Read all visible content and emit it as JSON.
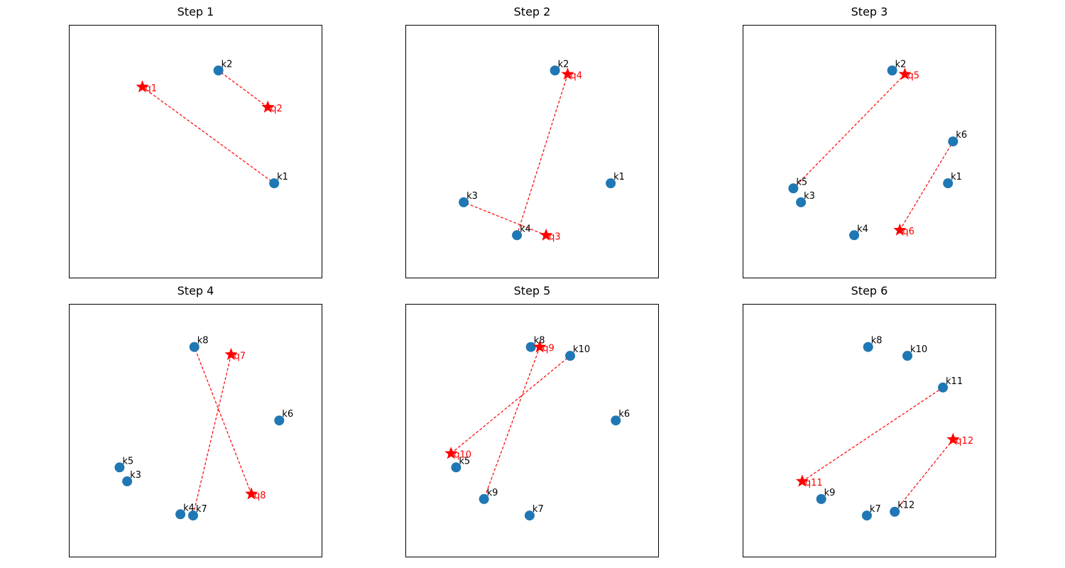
{
  "chart_data": [
    {
      "type": "scatter",
      "title": "Step 1",
      "xlim": [
        0,
        1
      ],
      "ylim": [
        0,
        1
      ],
      "xticks": false,
      "yticks": false,
      "keys": [
        {
          "label": "k1",
          "x": 0.81,
          "y": 0.375
        },
        {
          "label": "k2",
          "x": 0.59,
          "y": 0.82
        }
      ],
      "queries": [
        {
          "label": "q1",
          "x": 0.29,
          "y": 0.755
        },
        {
          "label": "q2",
          "x": 0.785,
          "y": 0.675
        }
      ],
      "links": [
        {
          "query": "q1",
          "key": "k1"
        },
        {
          "query": "q2",
          "key": "k2"
        }
      ]
    },
    {
      "type": "scatter",
      "title": "Step 2",
      "xlim": [
        0,
        1
      ],
      "ylim": [
        0,
        1
      ],
      "xticks": false,
      "yticks": false,
      "keys": [
        {
          "label": "k1",
          "x": 0.81,
          "y": 0.375
        },
        {
          "label": "k2",
          "x": 0.59,
          "y": 0.82
        },
        {
          "label": "k3",
          "x": 0.23,
          "y": 0.3
        },
        {
          "label": "k4",
          "x": 0.44,
          "y": 0.17
        }
      ],
      "queries": [
        {
          "label": "q3",
          "x": 0.555,
          "y": 0.17
        },
        {
          "label": "q4",
          "x": 0.64,
          "y": 0.805
        }
      ],
      "links": [
        {
          "query": "q3",
          "key": "k3"
        },
        {
          "query": "q4",
          "key": "k4"
        }
      ]
    },
    {
      "type": "scatter",
      "title": "Step 3",
      "xlim": [
        0,
        1
      ],
      "ylim": [
        0,
        1
      ],
      "xticks": false,
      "yticks": false,
      "keys": [
        {
          "label": "k1",
          "x": 0.81,
          "y": 0.375
        },
        {
          "label": "k2",
          "x": 0.59,
          "y": 0.82
        },
        {
          "label": "k3",
          "x": 0.23,
          "y": 0.3
        },
        {
          "label": "k4",
          "x": 0.44,
          "y": 0.17
        },
        {
          "label": "k5",
          "x": 0.2,
          "y": 0.355
        },
        {
          "label": "k6",
          "x": 0.83,
          "y": 0.54
        }
      ],
      "queries": [
        {
          "label": "q5",
          "x": 0.64,
          "y": 0.805
        },
        {
          "label": "q6",
          "x": 0.62,
          "y": 0.19
        }
      ],
      "links": [
        {
          "query": "q5",
          "key": "k5"
        },
        {
          "query": "q6",
          "key": "k6"
        }
      ]
    },
    {
      "type": "scatter",
      "title": "Step 4",
      "xlim": [
        0,
        1
      ],
      "ylim": [
        0,
        1
      ],
      "xticks": false,
      "yticks": false,
      "keys": [
        {
          "label": "k3",
          "x": 0.23,
          "y": 0.3
        },
        {
          "label": "k4",
          "x": 0.44,
          "y": 0.17
        },
        {
          "label": "k5",
          "x": 0.2,
          "y": 0.355
        },
        {
          "label": "k6",
          "x": 0.83,
          "y": 0.54
        },
        {
          "label": "k7",
          "x": 0.49,
          "y": 0.165
        },
        {
          "label": "k8",
          "x": 0.495,
          "y": 0.83
        }
      ],
      "queries": [
        {
          "label": "q7",
          "x": 0.64,
          "y": 0.8
        },
        {
          "label": "q8",
          "x": 0.72,
          "y": 0.25
        }
      ],
      "links": [
        {
          "query": "q7",
          "key": "k7"
        },
        {
          "query": "q8",
          "key": "k8"
        }
      ]
    },
    {
      "type": "scatter",
      "title": "Step 5",
      "xlim": [
        0,
        1
      ],
      "ylim": [
        0,
        1
      ],
      "xticks": false,
      "yticks": false,
      "keys": [
        {
          "label": "k5",
          "x": 0.2,
          "y": 0.355
        },
        {
          "label": "k6",
          "x": 0.83,
          "y": 0.54
        },
        {
          "label": "k7",
          "x": 0.49,
          "y": 0.165
        },
        {
          "label": "k8",
          "x": 0.495,
          "y": 0.83
        },
        {
          "label": "k9",
          "x": 0.31,
          "y": 0.23
        },
        {
          "label": "k10",
          "x": 0.65,
          "y": 0.795
        }
      ],
      "queries": [
        {
          "label": "q9",
          "x": 0.53,
          "y": 0.83
        },
        {
          "label": "q10",
          "x": 0.18,
          "y": 0.41
        }
      ],
      "links": [
        {
          "query": "q9",
          "key": "k9"
        },
        {
          "query": "q10",
          "key": "k10"
        }
      ]
    },
    {
      "type": "scatter",
      "title": "Step 6",
      "xlim": [
        0,
        1
      ],
      "ylim": [
        0,
        1
      ],
      "xticks": false,
      "yticks": false,
      "keys": [
        {
          "label": "k7",
          "x": 0.49,
          "y": 0.165
        },
        {
          "label": "k8",
          "x": 0.495,
          "y": 0.83
        },
        {
          "label": "k9",
          "x": 0.31,
          "y": 0.23
        },
        {
          "label": "k10",
          "x": 0.65,
          "y": 0.795
        },
        {
          "label": "k11",
          "x": 0.79,
          "y": 0.67
        },
        {
          "label": "k12",
          "x": 0.6,
          "y": 0.18
        }
      ],
      "queries": [
        {
          "label": "q11",
          "x": 0.235,
          "y": 0.3
        },
        {
          "label": "q12",
          "x": 0.83,
          "y": 0.465
        }
      ],
      "links": [
        {
          "query": "q11",
          "key": "k11"
        },
        {
          "query": "q12",
          "key": "k12"
        }
      ]
    }
  ],
  "colors": {
    "key_marker": "#1f77b4",
    "query_marker": "#ff0000",
    "link_line": "#ff0000",
    "key_label": "#000000",
    "query_label": "#ff0000"
  },
  "markers": {
    "key": "circle",
    "query": "star"
  },
  "link_style": "dashed"
}
